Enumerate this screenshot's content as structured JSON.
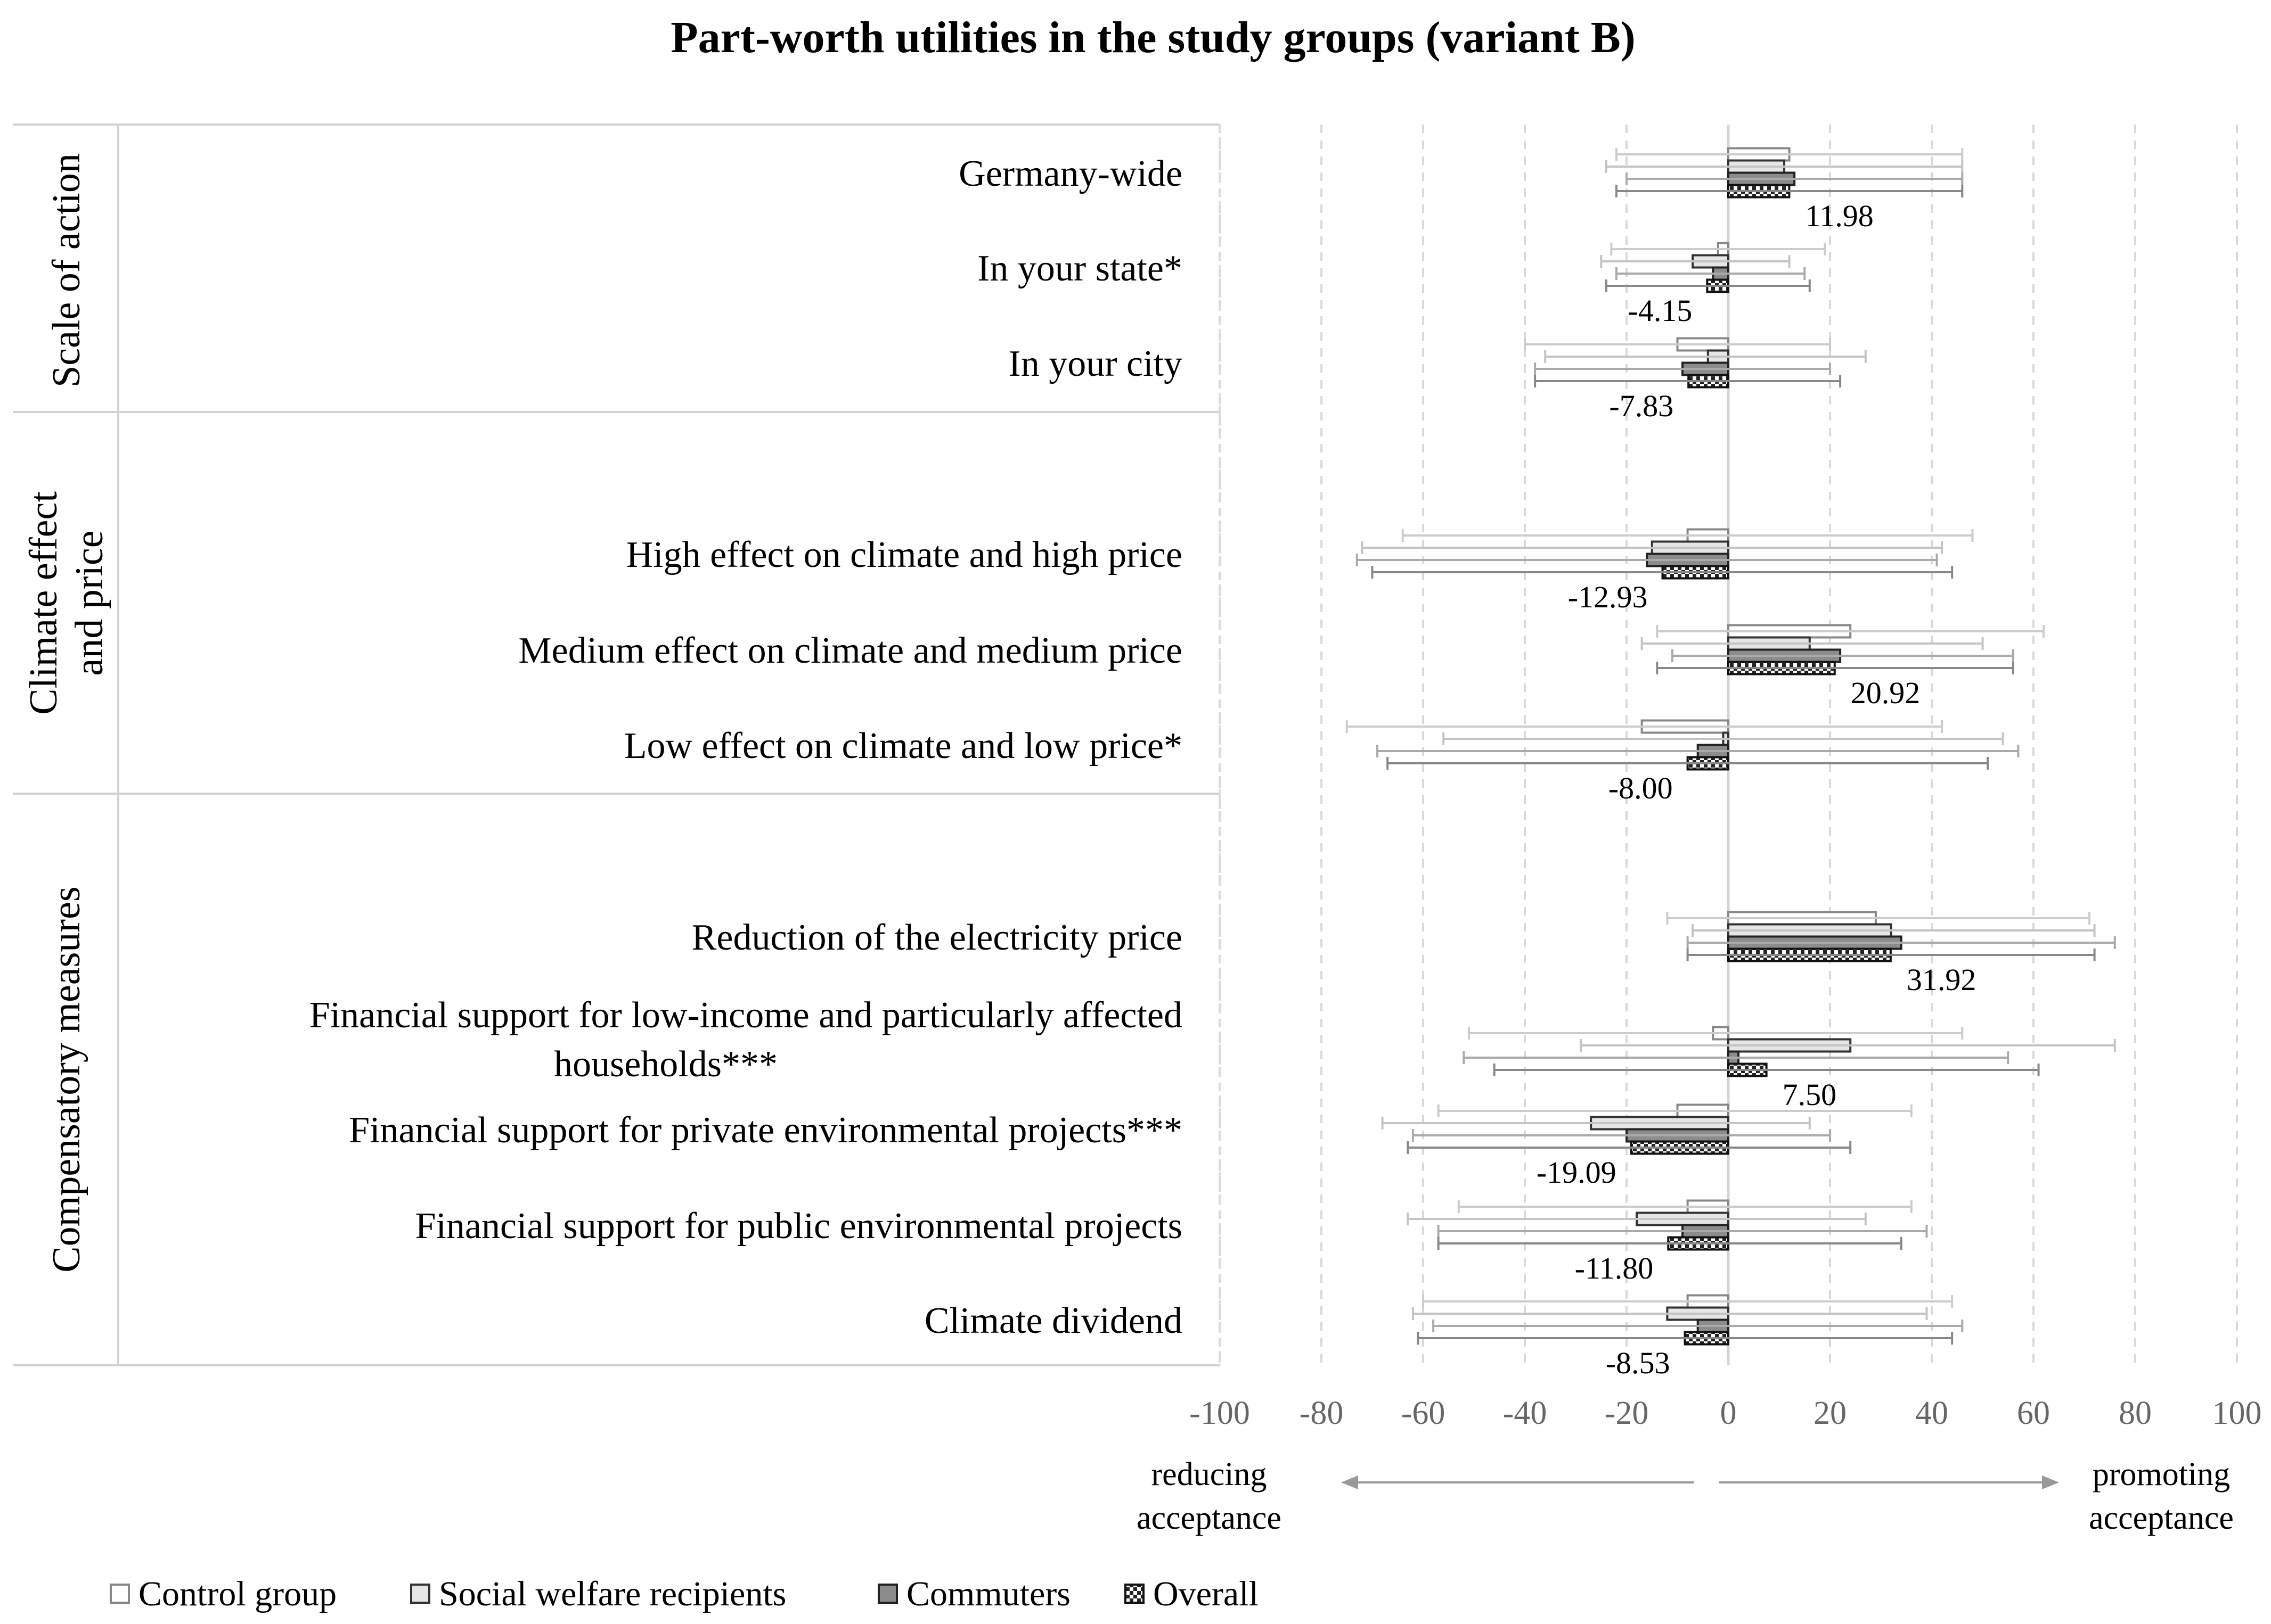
{
  "title": "Part-worth utilities in the study groups (variant B)",
  "chart_data": {
    "type": "bar",
    "orientation": "horizontal",
    "title": "Part-worth utilities in the study groups (variant B)",
    "xlim": [
      -100,
      100
    ],
    "x_ticks": [
      -100,
      -80,
      -60,
      -40,
      -20,
      0,
      20,
      40,
      60,
      80,
      100
    ],
    "x_tick_labels": [
      "-100",
      "-80",
      "-60",
      "-40",
      "-20",
      "0",
      "20",
      "40",
      "60",
      "80",
      "100"
    ],
    "grid": "vertical dashed",
    "direction_labels": {
      "negative": [
        "reducing",
        "acceptance"
      ],
      "positive": [
        "promoting",
        "acceptance"
      ]
    },
    "legend": {
      "position": "bottom",
      "entries": [
        "Control group",
        "Social welfare recipients",
        "Commuters",
        "Overall"
      ]
    },
    "groups": [
      {
        "name_lines": [
          "Scale of action"
        ],
        "row_count": 3
      },
      {
        "name_lines": [
          "Climate effect",
          "and price"
        ],
        "row_count": 3
      },
      {
        "name_lines": [
          "Compensatory measures"
        ],
        "row_count": 5
      }
    ],
    "rows": [
      {
        "label_lines": [
          "Germany-wide"
        ],
        "value_label": "11.98",
        "values": [
          12,
          11,
          13,
          11.98
        ],
        "errors": [
          [
            -22,
            46
          ],
          [
            -24,
            46
          ],
          [
            -20,
            46
          ],
          [
            -22,
            46
          ]
        ]
      },
      {
        "label_lines": [
          "In your state*"
        ],
        "value_label": "-4.15",
        "values": [
          -2,
          -7,
          -3,
          -4.15
        ],
        "errors": [
          [
            -23,
            19
          ],
          [
            -25,
            12
          ],
          [
            -22,
            15
          ],
          [
            -24,
            16
          ]
        ]
      },
      {
        "label_lines": [
          "In your city"
        ],
        "value_label": "-7.83",
        "values": [
          -10,
          -4,
          -9,
          -7.83
        ],
        "errors": [
          [
            -40,
            20
          ],
          [
            -36,
            27
          ],
          [
            -38,
            20
          ],
          [
            -38,
            22
          ]
        ]
      },
      {
        "label_lines": [
          "High effect on climate and high price"
        ],
        "value_label": "-12.93",
        "values": [
          -8,
          -15,
          -16,
          -12.93
        ],
        "errors": [
          [
            -64,
            48
          ],
          [
            -72,
            42
          ],
          [
            -73,
            41
          ],
          [
            -70,
            44
          ]
        ]
      },
      {
        "label_lines": [
          "Medium effect on climate and medium price"
        ],
        "value_label": "20.92",
        "values": [
          24,
          16,
          22,
          20.92
        ],
        "errors": [
          [
            -14,
            62
          ],
          [
            -17,
            50
          ],
          [
            -11,
            56
          ],
          [
            -14,
            56
          ]
        ]
      },
      {
        "label_lines": [
          "Low effect on climate and low price*"
        ],
        "value_label": "-8.00",
        "values": [
          -17,
          -1,
          -6,
          -8.0
        ],
        "errors": [
          [
            -75,
            42
          ],
          [
            -56,
            54
          ],
          [
            -69,
            57
          ],
          [
            -67,
            51
          ]
        ]
      },
      {
        "label_lines": [
          "Reduction of the electricity price"
        ],
        "value_label": "31.92",
        "values": [
          29,
          32,
          34,
          31.92
        ],
        "errors": [
          [
            -12,
            71
          ],
          [
            -7,
            72
          ],
          [
            -8,
            76
          ],
          [
            -8,
            72
          ]
        ]
      },
      {
        "label_lines": [
          "Financial support for low-income and particularly affected",
          "households***"
        ],
        "value_label": "7.50",
        "values": [
          -3,
          24,
          2,
          7.5
        ],
        "errors": [
          [
            -51,
            46
          ],
          [
            -29,
            76
          ],
          [
            -52,
            55
          ],
          [
            -46,
            61
          ]
        ]
      },
      {
        "label_lines": [
          "Financial support for private environmental projects***"
        ],
        "value_label": "-19.09",
        "values": [
          -10,
          -27,
          -20,
          -19.09
        ],
        "errors": [
          [
            -57,
            36
          ],
          [
            -68,
            16
          ],
          [
            -62,
            20
          ],
          [
            -63,
            24
          ]
        ]
      },
      {
        "label_lines": [
          "Financial support for public environmental projects"
        ],
        "value_label": "-11.80",
        "values": [
          -8,
          -18,
          -9,
          -11.8
        ],
        "errors": [
          [
            -53,
            36
          ],
          [
            -63,
            27
          ],
          [
            -57,
            39
          ],
          [
            -57,
            34
          ]
        ]
      },
      {
        "label_lines": [
          "Climate dividend"
        ],
        "value_label": "-8.53",
        "values": [
          -8,
          -12,
          -6,
          -8.53
        ],
        "errors": [
          [
            -60,
            44
          ],
          [
            -62,
            39
          ],
          [
            -58,
            46
          ],
          [
            -61,
            44
          ]
        ]
      }
    ]
  }
}
